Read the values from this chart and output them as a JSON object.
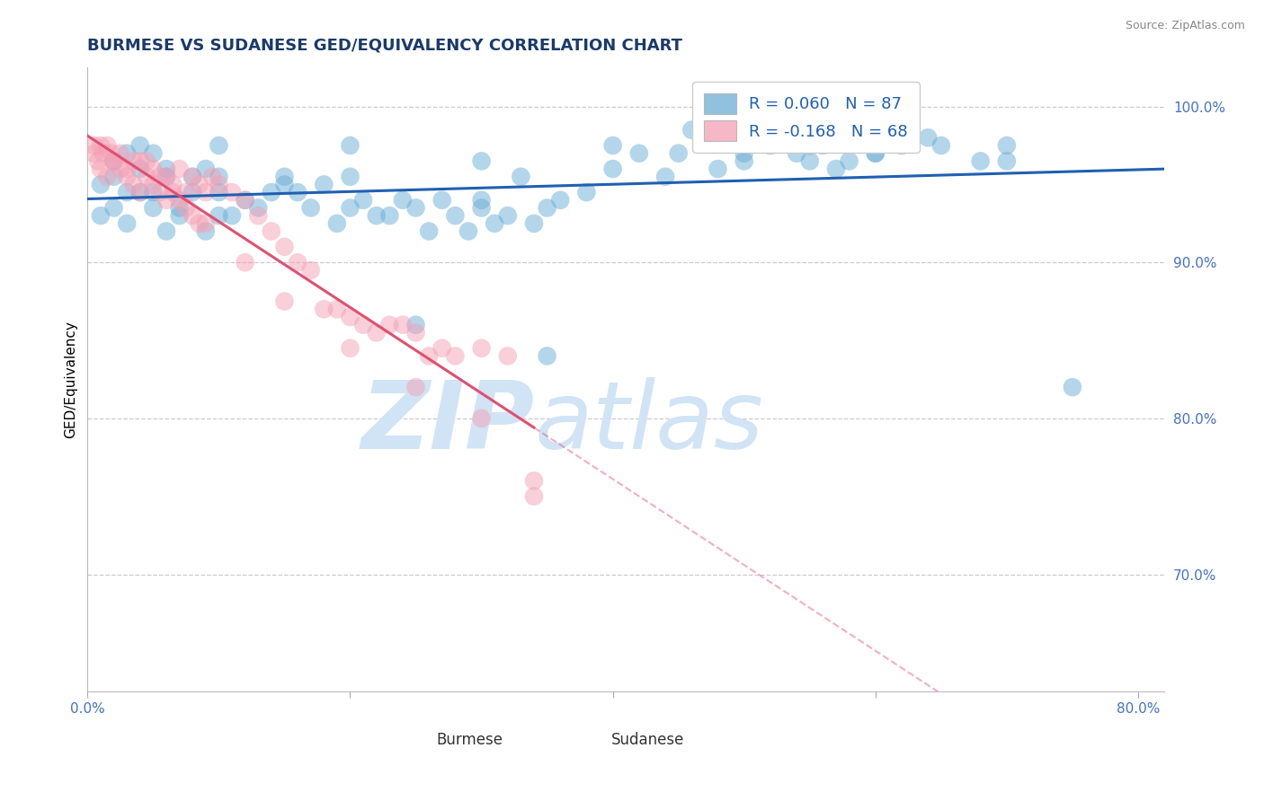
{
  "title": "BURMESE VS SUDANESE GED/EQUIVALENCY CORRELATION CHART",
  "source": "Source: ZipAtlas.com",
  "ylabel": "GED/Equivalency",
  "xlim": [
    0.0,
    0.82
  ],
  "ylim": [
    0.625,
    1.025
  ],
  "xticks": [
    0.0,
    0.2,
    0.4,
    0.6,
    0.8
  ],
  "xtick_labels": [
    "0.0%",
    "",
    "",
    "",
    "80.0%"
  ],
  "yticks": [
    0.7,
    0.8,
    0.9,
    1.0
  ],
  "ytick_labels": [
    "70.0%",
    "80.0%",
    "90.0%",
    "100.0%"
  ],
  "grid_color": "#cccccc",
  "blue_color": "#6baed6",
  "pink_color": "#f4a0b5",
  "blue_line_color": "#2060b0",
  "pink_line_color": "#e05070",
  "watermark_color": "#d0e4f5",
  "legend_R_blue": "R = 0.060",
  "legend_N_blue": "N = 87",
  "legend_R_pink": "R = -0.168",
  "legend_N_pink": "N = 68",
  "blue_label": "Burmese",
  "pink_label": "Sudanese",
  "burmese_x": [
    0.02,
    0.04,
    0.01,
    0.03,
    0.02,
    0.05,
    0.06,
    0.07,
    0.03,
    0.04,
    0.05,
    0.06,
    0.08,
    0.09,
    0.1,
    0.11,
    0.12,
    0.07,
    0.08,
    0.09,
    0.1,
    0.06,
    0.05,
    0.04,
    0.03,
    0.02,
    0.01,
    0.13,
    0.14,
    0.15,
    0.16,
    0.17,
    0.18,
    0.19,
    0.2,
    0.21,
    0.22,
    0.23,
    0.24,
    0.25,
    0.26,
    0.27,
    0.28,
    0.29,
    0.3,
    0.31,
    0.32,
    0.33,
    0.34,
    0.35,
    0.36,
    0.38,
    0.4,
    0.42,
    0.44,
    0.46,
    0.48,
    0.5,
    0.52,
    0.54,
    0.55,
    0.56,
    0.57,
    0.58,
    0.6,
    0.62,
    0.64,
    0.68,
    0.7,
    0.5,
    0.35,
    0.25,
    0.15,
    0.45,
    0.55,
    0.3,
    0.2,
    0.1,
    0.65,
    0.75,
    0.7,
    0.6,
    0.4,
    0.5,
    0.3,
    0.2,
    0.1
  ],
  "burmese_y": [
    0.955,
    0.975,
    0.93,
    0.97,
    0.965,
    0.97,
    0.96,
    0.93,
    0.945,
    0.96,
    0.945,
    0.955,
    0.945,
    0.96,
    0.955,
    0.93,
    0.94,
    0.935,
    0.955,
    0.92,
    0.93,
    0.92,
    0.935,
    0.945,
    0.925,
    0.935,
    0.95,
    0.935,
    0.945,
    0.95,
    0.945,
    0.935,
    0.95,
    0.925,
    0.935,
    0.94,
    0.93,
    0.93,
    0.94,
    0.935,
    0.92,
    0.94,
    0.93,
    0.92,
    0.94,
    0.925,
    0.93,
    0.955,
    0.925,
    0.935,
    0.94,
    0.945,
    0.96,
    0.97,
    0.955,
    0.985,
    0.96,
    0.965,
    0.975,
    0.97,
    0.975,
    0.975,
    0.96,
    0.965,
    0.97,
    0.975,
    0.98,
    0.965,
    0.975,
    0.975,
    0.84,
    0.86,
    0.955,
    0.97,
    0.965,
    0.935,
    0.955,
    0.945,
    0.975,
    0.82,
    0.965,
    0.97,
    0.975,
    0.97,
    0.965,
    0.975,
    0.975
  ],
  "sudanese_x": [
    0.005,
    0.008,
    0.01,
    0.012,
    0.015,
    0.018,
    0.02,
    0.025,
    0.03,
    0.035,
    0.04,
    0.045,
    0.05,
    0.055,
    0.06,
    0.065,
    0.07,
    0.075,
    0.08,
    0.085,
    0.09,
    0.095,
    0.1,
    0.11,
    0.12,
    0.13,
    0.14,
    0.15,
    0.16,
    0.17,
    0.18,
    0.19,
    0.2,
    0.21,
    0.22,
    0.23,
    0.24,
    0.25,
    0.26,
    0.27,
    0.28,
    0.3,
    0.32,
    0.34,
    0.005,
    0.01,
    0.015,
    0.02,
    0.025,
    0.03,
    0.035,
    0.04,
    0.045,
    0.05,
    0.055,
    0.06,
    0.065,
    0.07,
    0.075,
    0.08,
    0.085,
    0.09,
    0.12,
    0.15,
    0.2,
    0.25,
    0.3,
    0.34
  ],
  "sudanese_y": [
    0.975,
    0.965,
    0.975,
    0.97,
    0.975,
    0.97,
    0.965,
    0.97,
    0.96,
    0.965,
    0.965,
    0.965,
    0.96,
    0.955,
    0.955,
    0.95,
    0.96,
    0.945,
    0.955,
    0.95,
    0.945,
    0.955,
    0.95,
    0.945,
    0.94,
    0.93,
    0.92,
    0.91,
    0.9,
    0.895,
    0.87,
    0.87,
    0.865,
    0.86,
    0.855,
    0.86,
    0.86,
    0.855,
    0.84,
    0.845,
    0.84,
    0.845,
    0.84,
    0.75,
    0.97,
    0.96,
    0.955,
    0.965,
    0.96,
    0.955,
    0.95,
    0.945,
    0.955,
    0.95,
    0.945,
    0.94,
    0.945,
    0.94,
    0.935,
    0.93,
    0.925,
    0.925,
    0.9,
    0.875,
    0.845,
    0.82,
    0.8,
    0.76
  ]
}
